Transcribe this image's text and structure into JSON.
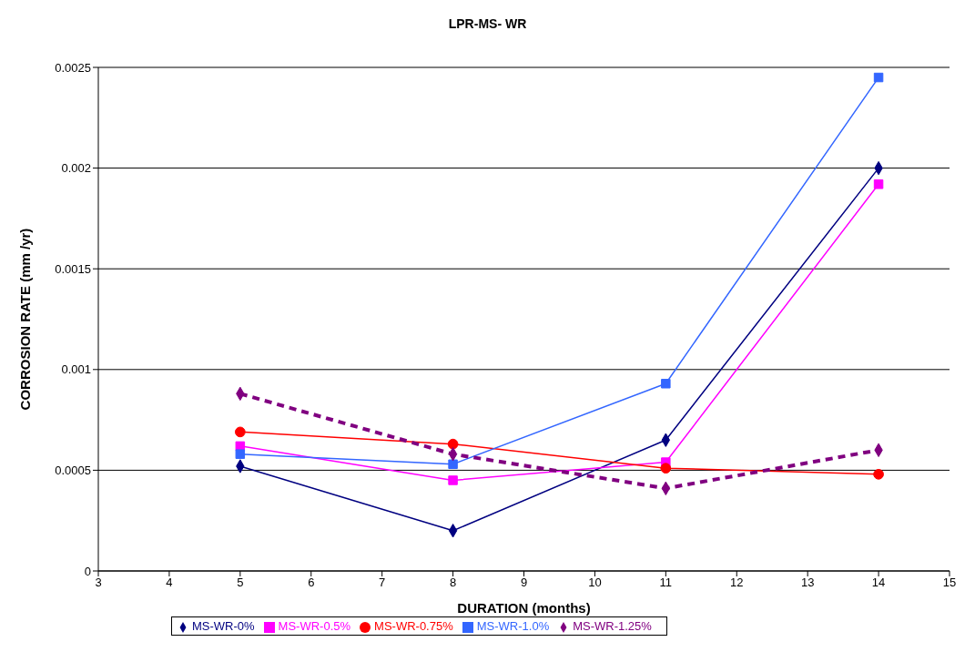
{
  "chart_data": {
    "type": "line",
    "title": "LPR-MS- WR",
    "xlabel": "DURATION (months)",
    "ylabel": "CORROSION RATE (mm /yr)",
    "x": [
      5,
      8,
      11,
      14
    ],
    "series": [
      {
        "name": "MS-WR-0%",
        "color": "#000080",
        "marker": "diamond",
        "line_style": "solid",
        "values": [
          0.00052,
          0.0002,
          0.00065,
          0.002
        ]
      },
      {
        "name": "MS-WR-0.5%",
        "color": "#ff00ff",
        "marker": "square",
        "line_style": "solid",
        "values": [
          0.00062,
          0.00045,
          0.00054,
          0.00192
        ]
      },
      {
        "name": "MS-WR-0.75%",
        "color": "#ff0000",
        "marker": "circle",
        "line_style": "solid",
        "values": [
          0.00069,
          0.00063,
          0.00051,
          0.00048
        ]
      },
      {
        "name": "MS-WR-1.0%",
        "color": "#3366ff",
        "marker": "square",
        "line_style": "solid",
        "values": [
          0.00058,
          0.00053,
          0.00093,
          0.00245
        ]
      },
      {
        "name": "MS-WR-1.25%",
        "color": "#800080",
        "marker": "diamond",
        "line_style": "dashed",
        "values": [
          0.00088,
          0.00058,
          0.00041,
          0.0006
        ]
      }
    ],
    "xlim": [
      3,
      15
    ],
    "xticks": [
      3,
      4,
      5,
      6,
      7,
      8,
      9,
      10,
      11,
      12,
      13,
      14,
      15
    ],
    "ylim": [
      0,
      0.0025
    ],
    "yticks": [
      0,
      0.0005,
      0.001,
      0.0015,
      0.002,
      0.0025
    ],
    "grid": "y",
    "legend": "bottom"
  }
}
